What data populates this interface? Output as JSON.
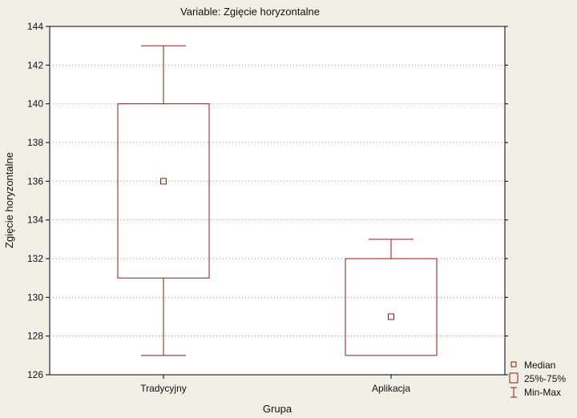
{
  "chart_data": {
    "type": "box",
    "title": "Variable: Zgięcie horyzontalne",
    "xlabel": "Grupa",
    "ylabel": "Zgięcie horyzontalne",
    "ylim": [
      126,
      144
    ],
    "yticks": [
      126,
      128,
      130,
      132,
      134,
      136,
      138,
      140,
      142,
      144
    ],
    "grid": "horizontal dotted",
    "categories": [
      "Tradycyjny",
      "Aplikacja"
    ],
    "boxes": [
      {
        "category": "Tradycyjny",
        "min": 127,
        "q1": 131,
        "median": 136,
        "q3": 140,
        "max": 143
      },
      {
        "category": "Aplikacja",
        "min": 127,
        "q1": 127,
        "median": 129,
        "q3": 132,
        "max": 133
      }
    ],
    "legend": {
      "placement": "bottom-right",
      "entries": [
        "Median",
        "25%-75%",
        "Min-Max"
      ]
    },
    "colors": {
      "series": "#8b1a1a",
      "background": "#f0f0e6",
      "frame": "#000000"
    }
  }
}
